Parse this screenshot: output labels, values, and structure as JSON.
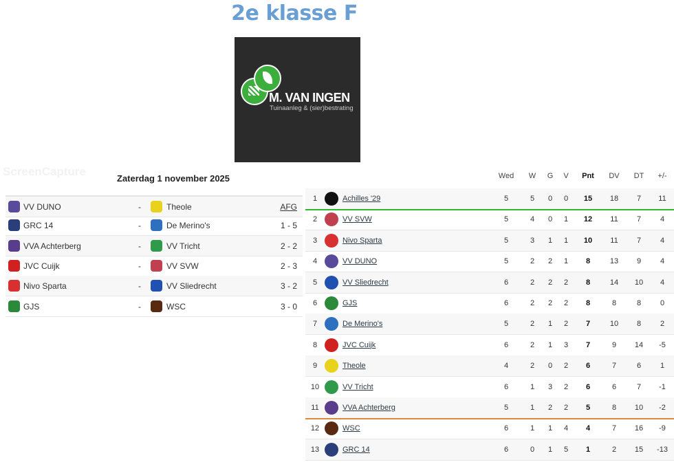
{
  "title": "2e klasse F",
  "sponsor": {
    "name": "M. VAN INGEN",
    "tagline": "Tuinaanleg & (sier)bestrating"
  },
  "watermark": "ScreenCapture",
  "results": {
    "date": "Zaterdag 1 november 2025",
    "matches": [
      {
        "home": "VV DUNO",
        "away": "Theole",
        "score": "AFG",
        "home_color": "#5a4a9c",
        "away_color": "#e8d21c"
      },
      {
        "home": "GRC 14",
        "away": "De Merino's",
        "score": "1 - 5",
        "home_color": "#2a3f7a",
        "away_color": "#2f6fc0"
      },
      {
        "home": "VVA Achterberg",
        "away": "VV Tricht",
        "score": "2 - 2",
        "home_color": "#5a3c8c",
        "away_color": "#2f9a4a"
      },
      {
        "home": "JVC Cuijk",
        "away": "VV SVW",
        "score": "2 - 3",
        "home_color": "#d02020",
        "away_color": "#c04050"
      },
      {
        "home": "Nivo Sparta",
        "away": "VV Sliedrecht",
        "score": "3 - 2",
        "home_color": "#d83030",
        "away_color": "#2050b0"
      },
      {
        "home": "GJS",
        "away": "WSC",
        "score": "3 - 0",
        "home_color": "#2a8a3a",
        "away_color": "#5a2a10"
      }
    ]
  },
  "standings": {
    "headers": {
      "wed": "Wed",
      "w": "W",
      "g": "G",
      "v": "V",
      "pnt": "Pnt",
      "dv": "DV",
      "dt": "DT",
      "gd": "+/-"
    },
    "promotion_line_color": "#2db82d",
    "relegation_line_color": "#d98a3a",
    "rows": [
      {
        "rank": "1",
        "team": "Achilles '29",
        "wed": "5",
        "w": "5",
        "g": "0",
        "v": "0",
        "pnt": "15",
        "dv": "18",
        "dt": "7",
        "gd": "11",
        "color": "#111111"
      },
      {
        "rank": "2",
        "team": "VV SVW",
        "wed": "5",
        "w": "4",
        "g": "0",
        "v": "1",
        "pnt": "12",
        "dv": "11",
        "dt": "7",
        "gd": "4",
        "color": "#c04050"
      },
      {
        "rank": "3",
        "team": "Nivo Sparta",
        "wed": "5",
        "w": "3",
        "g": "1",
        "v": "1",
        "pnt": "10",
        "dv": "11",
        "dt": "7",
        "gd": "4",
        "color": "#d83030"
      },
      {
        "rank": "4",
        "team": "VV DUNO",
        "wed": "5",
        "w": "2",
        "g": "2",
        "v": "1",
        "pnt": "8",
        "dv": "13",
        "dt": "9",
        "gd": "4",
        "color": "#5a4a9c"
      },
      {
        "rank": "5",
        "team": "VV Sliedrecht",
        "wed": "6",
        "w": "2",
        "g": "2",
        "v": "2",
        "pnt": "8",
        "dv": "14",
        "dt": "10",
        "gd": "4",
        "color": "#2050b0"
      },
      {
        "rank": "6",
        "team": "GJS",
        "wed": "6",
        "w": "2",
        "g": "2",
        "v": "2",
        "pnt": "8",
        "dv": "8",
        "dt": "8",
        "gd": "0",
        "color": "#2a8a3a"
      },
      {
        "rank": "7",
        "team": "De Merino's",
        "wed": "5",
        "w": "2",
        "g": "1",
        "v": "2",
        "pnt": "7",
        "dv": "10",
        "dt": "8",
        "gd": "2",
        "color": "#2f6fc0"
      },
      {
        "rank": "8",
        "team": "JVC Cuijk",
        "wed": "6",
        "w": "2",
        "g": "1",
        "v": "3",
        "pnt": "7",
        "dv": "9",
        "dt": "14",
        "gd": "-5",
        "color": "#d02020"
      },
      {
        "rank": "9",
        "team": "Theole",
        "wed": "4",
        "w": "2",
        "g": "0",
        "v": "2",
        "pnt": "6",
        "dv": "7",
        "dt": "6",
        "gd": "1",
        "color": "#e8d21c"
      },
      {
        "rank": "10",
        "team": "VV Tricht",
        "wed": "6",
        "w": "1",
        "g": "3",
        "v": "2",
        "pnt": "6",
        "dv": "6",
        "dt": "7",
        "gd": "-1",
        "color": "#2f9a4a"
      },
      {
        "rank": "11",
        "team": "VVA Achterberg",
        "wed": "5",
        "w": "1",
        "g": "2",
        "v": "2",
        "pnt": "5",
        "dv": "8",
        "dt": "10",
        "gd": "-2",
        "color": "#5a3c8c"
      },
      {
        "rank": "12",
        "team": "WSC",
        "wed": "6",
        "w": "1",
        "g": "1",
        "v": "4",
        "pnt": "4",
        "dv": "7",
        "dt": "16",
        "gd": "-9",
        "color": "#5a2a10"
      },
      {
        "rank": "13",
        "team": "GRC 14",
        "wed": "6",
        "w": "0",
        "g": "1",
        "v": "5",
        "pnt": "1",
        "dv": "2",
        "dt": "15",
        "gd": "-13",
        "color": "#2a3f7a"
      }
    ]
  }
}
